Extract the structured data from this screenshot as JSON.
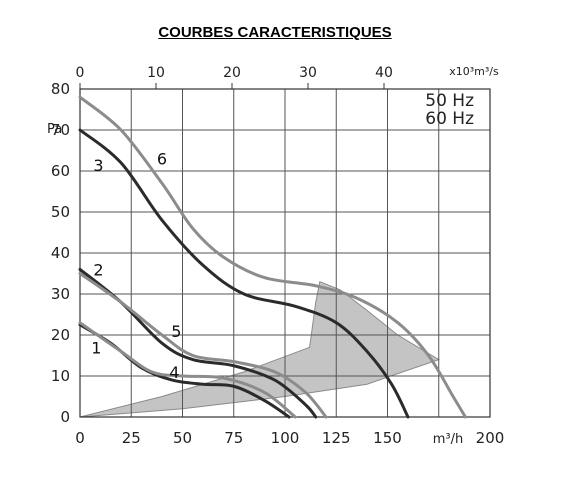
{
  "chart_data": {
    "type": "line",
    "title": "COURBES CARACTERISTIQUES",
    "xlabel": "m³/h",
    "x2label": "x10³m³/s",
    "ylabel": "Pa",
    "xlim": [
      0,
      200
    ],
    "ylim": [
      0,
      80
    ],
    "x_ticks": [
      0,
      25,
      50,
      75,
      100,
      125,
      150,
      175,
      200
    ],
    "x_tick_labels": [
      "0",
      "25",
      "50",
      "75",
      "100",
      "125",
      "150",
      "",
      "200"
    ],
    "x2_ticks": [
      0,
      10,
      20,
      30,
      40
    ],
    "x2_tick_labels": [
      "0",
      "10",
      "20",
      "30",
      "40"
    ],
    "y_ticks": [
      0,
      10,
      20,
      30,
      40,
      50,
      60,
      70,
      80
    ],
    "grid": true,
    "legend": {
      "position": "top-right",
      "entries": [
        "50 Hz",
        "60 Hz"
      ]
    },
    "colors": {
      "50hz": "#2b2b2b",
      "60hz": "#8c8c8c",
      "zone": "#c4c4c4",
      "grid": "#555555"
    },
    "operating_zone": {
      "points": [
        [
          0,
          0
        ],
        [
          40,
          5
        ],
        [
          80,
          11
        ],
        [
          112,
          17
        ],
        [
          115,
          28
        ],
        [
          117,
          33
        ],
        [
          127,
          31
        ],
        [
          140,
          26
        ],
        [
          155,
          20
        ],
        [
          175,
          14
        ],
        [
          140,
          8
        ],
        [
          100,
          5
        ],
        [
          50,
          2
        ],
        [
          0,
          0
        ]
      ]
    },
    "series": [
      {
        "name": "1",
        "frequency": "50 Hz",
        "points": [
          [
            0,
            22.5
          ],
          [
            15,
            18
          ],
          [
            30,
            12
          ],
          [
            45,
            9
          ],
          [
            60,
            8
          ],
          [
            75,
            7.5
          ],
          [
            90,
            4
          ],
          [
            102,
            0
          ]
        ]
      },
      {
        "name": "4",
        "frequency": "60 Hz",
        "points": [
          [
            0,
            23
          ],
          [
            20,
            16
          ],
          [
            35,
            11
          ],
          [
            50,
            10
          ],
          [
            70,
            9.5
          ],
          [
            90,
            6
          ],
          [
            105,
            0
          ]
        ]
      },
      {
        "name": "2",
        "frequency": "50 Hz",
        "points": [
          [
            0,
            36
          ],
          [
            20,
            28
          ],
          [
            40,
            18
          ],
          [
            55,
            14
          ],
          [
            75,
            12.5
          ],
          [
            95,
            9
          ],
          [
            110,
            3
          ],
          [
            115,
            0
          ]
        ]
      },
      {
        "name": "5",
        "frequency": "60 Hz",
        "points": [
          [
            0,
            35
          ],
          [
            20,
            28
          ],
          [
            40,
            20
          ],
          [
            55,
            15
          ],
          [
            75,
            13.5
          ],
          [
            95,
            11
          ],
          [
            110,
            6
          ],
          [
            120,
            0
          ]
        ]
      },
      {
        "name": "3",
        "frequency": "50 Hz",
        "points": [
          [
            0,
            70
          ],
          [
            20,
            62
          ],
          [
            40,
            48
          ],
          [
            60,
            37
          ],
          [
            80,
            30
          ],
          [
            105,
            27
          ],
          [
            125,
            23
          ],
          [
            140,
            16
          ],
          [
            152,
            8
          ],
          [
            160,
            0
          ]
        ]
      },
      {
        "name": "6",
        "frequency": "60 Hz",
        "points": [
          [
            0,
            78
          ],
          [
            20,
            70
          ],
          [
            40,
            57
          ],
          [
            55,
            46
          ],
          [
            70,
            39
          ],
          [
            90,
            34
          ],
          [
            115,
            32
          ],
          [
            135,
            29
          ],
          [
            155,
            23
          ],
          [
            170,
            15
          ],
          [
            182,
            5
          ],
          [
            188,
            0
          ]
        ]
      }
    ],
    "curve_labels": [
      {
        "text": "1",
        "x": 8,
        "y": 17
      },
      {
        "text": "2",
        "x": 9,
        "y": 36
      },
      {
        "text": "3",
        "x": 9,
        "y": 61.5
      },
      {
        "text": "4",
        "x": 46,
        "y": 11
      },
      {
        "text": "5",
        "x": 47,
        "y": 21
      },
      {
        "text": "6",
        "x": 40,
        "y": 63
      }
    ]
  }
}
